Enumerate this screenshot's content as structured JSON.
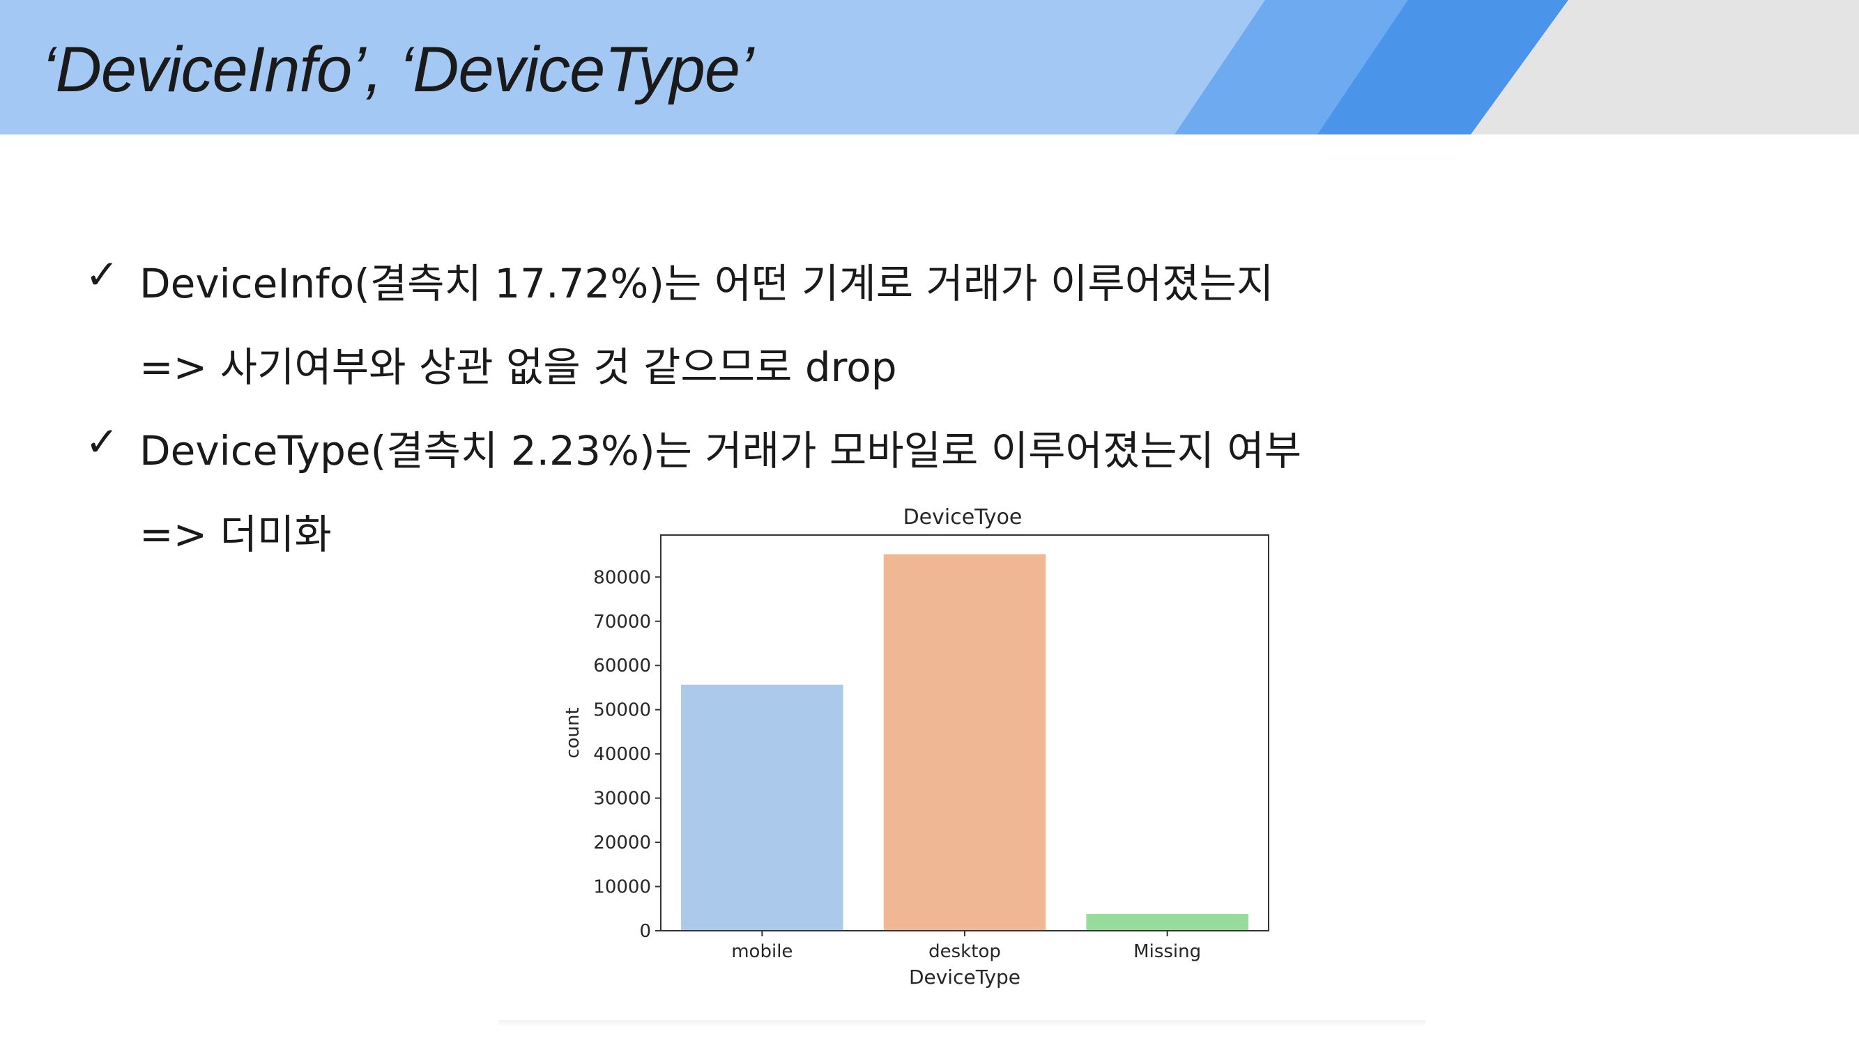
{
  "slide": {
    "title": "‘DeviceInfo’, ‘DeviceType’"
  },
  "bullets": [
    {
      "marker": "✓",
      "text": "DeviceInfo(결측치 17.72%)는 어떤 기계로 거래가 이루어졌는지"
    },
    {
      "marker": "",
      "text": "=>  사기여부와 상관 없을 것 같으므로 drop"
    },
    {
      "marker": "✓",
      "text": "DeviceType(결측치 2.23%)는 거래가 모바일로 이루어졌는지 여부"
    },
    {
      "marker": "",
      "text": "=>  더미화"
    }
  ],
  "colors": {
    "header": "#a2c8f3",
    "accent_mid": "#6eaaf0",
    "accent_dark": "#4a94ea",
    "header_gray": "#e4e4e4"
  },
  "chart_data": {
    "type": "bar",
    "title": "DeviceTyoe",
    "xlabel": "DeviceType",
    "ylabel": "count",
    "categories": [
      "mobile",
      "desktop",
      "Missing"
    ],
    "values": [
      55645,
      85165,
      3800
    ],
    "colors": [
      "#aac9eb",
      "#f0b794",
      "#98dc9c"
    ],
    "ylim": [
      0,
      89500
    ],
    "yticks": [
      0,
      10000,
      20000,
      30000,
      40000,
      50000,
      60000,
      70000,
      80000
    ],
    "grid": false
  }
}
